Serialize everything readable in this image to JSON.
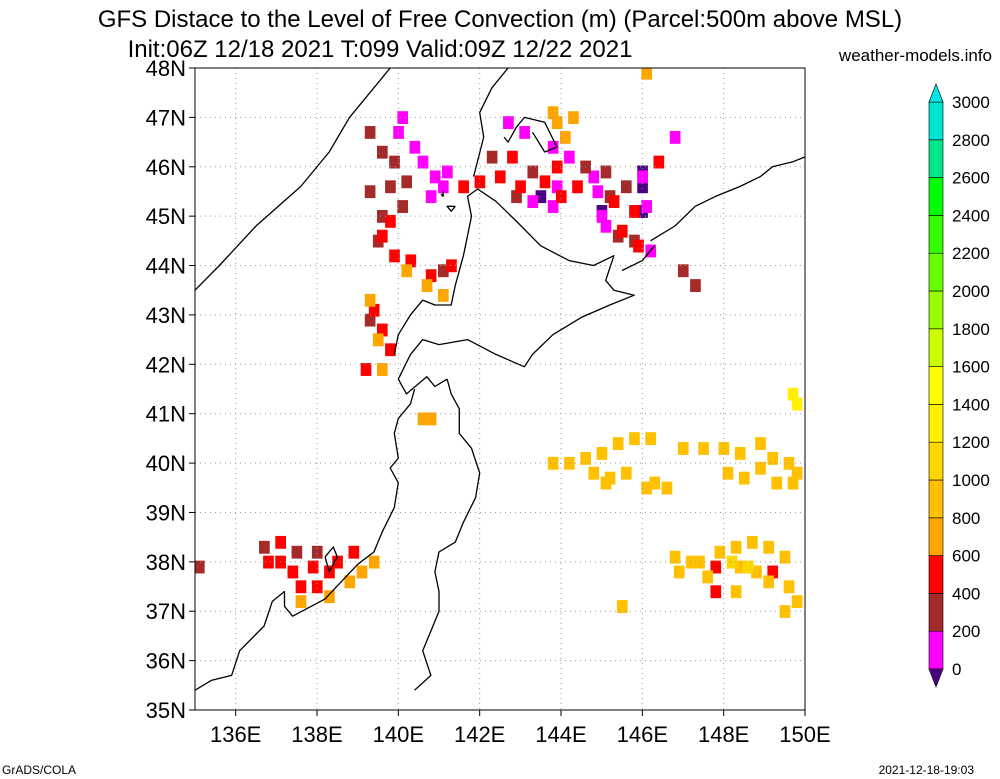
{
  "header": {
    "title": "GFS Distace to the Level of Free Convection (m) (Parcel:500m above MSL)",
    "subtitle": "Init:06Z 12/18 2021 T:099 Valid:09Z 12/22 2021",
    "site": "weather-models.info"
  },
  "footer": {
    "left": "GrADS/COLA",
    "right": "2021-12-18-19:03"
  },
  "map": {
    "lon_range": [
      135,
      150
    ],
    "lat_range": [
      35,
      48
    ],
    "lon_ticks": [
      136,
      138,
      140,
      142,
      144,
      146,
      148,
      150
    ],
    "lat_ticks": [
      35,
      36,
      37,
      38,
      39,
      40,
      41,
      42,
      43,
      44,
      45,
      46,
      47,
      48
    ],
    "lon_tick_labels": [
      "136E",
      "138E",
      "140E",
      "142E",
      "144E",
      "146E",
      "148E",
      "150E"
    ],
    "lat_tick_labels": [
      "35N",
      "36N",
      "37N",
      "38N",
      "39N",
      "40N",
      "41N",
      "42N",
      "43N",
      "44N",
      "45N",
      "46N",
      "47N",
      "48N"
    ],
    "grid": "dotted",
    "coastline_color": "#000000",
    "coastlines": [
      [
        [
          135.0,
          43.5
        ],
        [
          135.6,
          44.0
        ],
        [
          136.5,
          44.8
        ],
        [
          137.6,
          45.6
        ],
        [
          138.3,
          46.3
        ],
        [
          138.8,
          47.0
        ],
        [
          139.4,
          47.6
        ],
        [
          139.8,
          48.0
        ]
      ],
      [
        [
          139.9,
          42.2
        ],
        [
          140.0,
          42.6
        ],
        [
          140.3,
          43.0
        ],
        [
          140.6,
          43.3
        ],
        [
          140.9,
          43.2
        ],
        [
          141.3,
          43.2
        ],
        [
          141.4,
          43.6
        ],
        [
          141.6,
          44.2
        ],
        [
          141.7,
          44.6
        ],
        [
          141.8,
          45.0
        ],
        [
          141.7,
          45.4
        ],
        [
          141.95,
          45.55
        ],
        [
          142.4,
          45.3
        ],
        [
          142.9,
          44.9
        ],
        [
          143.5,
          44.4
        ],
        [
          144.2,
          44.1
        ],
        [
          144.8,
          44.0
        ],
        [
          145.3,
          44.2
        ],
        [
          145.1,
          43.7
        ],
        [
          145.3,
          43.5
        ],
        [
          145.8,
          43.4
        ],
        [
          145.2,
          43.2
        ],
        [
          144.5,
          42.95
        ],
        [
          143.8,
          42.6
        ],
        [
          143.3,
          42.2
        ],
        [
          143.1,
          41.95
        ],
        [
          142.4,
          42.2
        ],
        [
          141.7,
          42.5
        ],
        [
          141.0,
          42.4
        ],
        [
          140.6,
          42.5
        ],
        [
          140.3,
          42.2
        ],
        [
          140.0,
          41.7
        ],
        [
          140.2,
          41.4
        ],
        [
          140.7,
          41.75
        ],
        [
          140.9,
          41.55
        ],
        [
          141.2,
          41.7
        ]
      ],
      [
        [
          141.2,
          41.7
        ],
        [
          141.3,
          41.4
        ],
        [
          141.5,
          41.1
        ],
        [
          141.5,
          40.6
        ],
        [
          141.8,
          40.3
        ],
        [
          142.0,
          39.8
        ],
        [
          141.9,
          39.3
        ],
        [
          141.6,
          38.8
        ],
        [
          141.4,
          38.4
        ],
        [
          141.0,
          38.2
        ],
        [
          140.9,
          37.8
        ],
        [
          141.0,
          37.4
        ],
        [
          141.0,
          37.0
        ],
        [
          140.8,
          36.6
        ],
        [
          140.6,
          36.2
        ],
        [
          140.8,
          35.7
        ],
        [
          140.4,
          35.4
        ]
      ],
      [
        [
          140.4,
          41.5
        ],
        [
          140.3,
          41.2
        ],
        [
          140.0,
          40.9
        ],
        [
          139.9,
          40.6
        ],
        [
          140.0,
          40.1
        ],
        [
          139.8,
          39.9
        ],
        [
          140.0,
          39.6
        ],
        [
          139.9,
          39.1
        ],
        [
          139.6,
          38.6
        ],
        [
          139.4,
          38.2
        ],
        [
          139.0,
          37.95
        ],
        [
          138.6,
          37.6
        ],
        [
          138.2,
          37.25
        ],
        [
          137.4,
          36.9
        ],
        [
          137.2,
          37.1
        ],
        [
          137.2,
          37.4
        ],
        [
          136.9,
          37.2
        ],
        [
          136.7,
          36.7
        ],
        [
          136.1,
          36.2
        ],
        [
          135.9,
          35.7
        ],
        [
          135.4,
          35.6
        ],
        [
          135.0,
          35.4
        ]
      ],
      [
        [
          141.85,
          45.8
        ],
        [
          142.1,
          46.6
        ],
        [
          142.0,
          47.1
        ],
        [
          142.3,
          47.6
        ],
        [
          142.7,
          48.0
        ]
      ],
      [
        [
          143.3,
          46.7
        ],
        [
          143.6,
          46.3
        ],
        [
          143.9,
          46.4
        ],
        [
          143.6,
          46.9
        ],
        [
          143.1,
          47.0
        ],
        [
          142.9,
          46.8
        ],
        [
          142.7,
          46.5
        ],
        [
          142.6,
          46.6
        ]
      ],
      [
        [
          146.2,
          44.5
        ],
        [
          146.8,
          44.8
        ],
        [
          147.3,
          45.2
        ],
        [
          147.8,
          45.4
        ],
        [
          148.4,
          45.6
        ],
        [
          148.9,
          45.8
        ],
        [
          149.2,
          46.0
        ],
        [
          149.7,
          46.1
        ],
        [
          150.0,
          46.2
        ]
      ],
      [
        [
          145.5,
          43.9
        ],
        [
          146.0,
          44.1
        ],
        [
          146.3,
          44.4
        ]
      ],
      [
        [
          138.2,
          38.1
        ],
        [
          138.4,
          38.3
        ],
        [
          138.5,
          38.1
        ],
        [
          138.3,
          37.8
        ],
        [
          138.2,
          38.1
        ]
      ],
      [
        [
          141.4,
          45.2
        ],
        [
          141.3,
          45.1
        ],
        [
          141.2,
          45.2
        ],
        [
          141.4,
          45.2
        ]
      ],
      [
        [
          141.05,
          45.45
        ],
        [
          141.1,
          45.4
        ],
        [
          141.1,
          45.5
        ]
      ]
    ],
    "cell_size_deg": [
      0.25,
      0.25
    ],
    "regions": [
      {
        "level": "0",
        "cells": [
          [
            143.5,
            45.4
          ],
          [
            146.0,
            45.6
          ],
          [
            146.0,
            45.9
          ],
          [
            146.0,
            45.1
          ],
          [
            145.0,
            45.1
          ]
        ]
      },
      {
        "level": "200",
        "cells": [
          [
            140.1,
            47.0
          ],
          [
            140.0,
            46.7
          ],
          [
            140.4,
            46.4
          ],
          [
            140.6,
            46.1
          ],
          [
            140.9,
            45.8
          ],
          [
            141.1,
            45.6
          ],
          [
            141.2,
            45.9
          ],
          [
            140.8,
            45.4
          ],
          [
            144.8,
            45.8
          ],
          [
            144.9,
            45.5
          ],
          [
            143.3,
            45.3
          ],
          [
            143.8,
            45.2
          ],
          [
            146.0,
            45.8
          ],
          [
            146.1,
            45.2
          ],
          [
            145.0,
            45.0
          ],
          [
            145.1,
            44.8
          ],
          [
            146.8,
            46.6
          ],
          [
            142.7,
            46.9
          ],
          [
            143.1,
            46.7
          ],
          [
            143.8,
            46.4
          ],
          [
            144.2,
            46.2
          ],
          [
            143.9,
            45.6
          ],
          [
            146.2,
            44.3
          ]
        ]
      },
      {
        "level": "400",
        "cells": [
          [
            139.3,
            46.7
          ],
          [
            139.6,
            46.3
          ],
          [
            139.9,
            46.1
          ],
          [
            140.2,
            45.7
          ],
          [
            139.3,
            45.5
          ],
          [
            139.6,
            45.0
          ],
          [
            140.1,
            45.2
          ],
          [
            139.8,
            45.6
          ],
          [
            142.3,
            46.2
          ],
          [
            142.9,
            45.4
          ],
          [
            143.3,
            45.9
          ],
          [
            144.6,
            46.0
          ],
          [
            145.1,
            45.9
          ],
          [
            145.2,
            45.4
          ],
          [
            145.6,
            45.6
          ],
          [
            145.4,
            44.6
          ],
          [
            145.8,
            44.5
          ],
          [
            147.0,
            43.9
          ],
          [
            147.3,
            43.6
          ],
          [
            139.5,
            44.5
          ],
          [
            141.1,
            43.9
          ],
          [
            136.7,
            38.3
          ],
          [
            137.5,
            38.2
          ],
          [
            138.0,
            38.2
          ],
          [
            135.1,
            37.9
          ],
          [
            139.3,
            42.9
          ]
        ]
      },
      {
        "level": "600",
        "cells": [
          [
            139.6,
            44.6
          ],
          [
            139.9,
            44.2
          ],
          [
            140.3,
            44.1
          ],
          [
            140.8,
            43.8
          ],
          [
            141.3,
            44.0
          ],
          [
            141.6,
            45.6
          ],
          [
            142.0,
            45.7
          ],
          [
            142.5,
            45.8
          ],
          [
            143.0,
            45.6
          ],
          [
            143.6,
            45.7
          ],
          [
            144.0,
            45.4
          ],
          [
            145.3,
            45.3
          ],
          [
            145.8,
            45.1
          ],
          [
            145.5,
            44.7
          ],
          [
            145.9,
            44.4
          ],
          [
            146.4,
            46.1
          ],
          [
            142.8,
            46.2
          ],
          [
            143.9,
            46.0
          ],
          [
            144.4,
            45.6
          ],
          [
            139.8,
            44.9
          ],
          [
            139.6,
            42.7
          ],
          [
            139.8,
            42.3
          ],
          [
            137.1,
            38.0
          ],
          [
            137.4,
            37.8
          ],
          [
            137.9,
            37.9
          ],
          [
            138.3,
            37.8
          ],
          [
            138.0,
            37.5
          ],
          [
            137.6,
            37.5
          ],
          [
            137.1,
            38.4
          ],
          [
            136.8,
            38.0
          ],
          [
            147.8,
            37.9
          ],
          [
            149.2,
            37.8
          ],
          [
            138.5,
            38.0
          ],
          [
            139.2,
            41.9
          ],
          [
            139.4,
            43.1
          ],
          [
            138.9,
            38.2
          ],
          [
            147.8,
            37.4
          ]
        ]
      },
      {
        "level": "800",
        "cells": [
          [
            140.2,
            43.9
          ],
          [
            140.7,
            43.6
          ],
          [
            141.1,
            43.4
          ],
          [
            143.9,
            46.9
          ],
          [
            144.3,
            47.0
          ],
          [
            143.8,
            47.1
          ],
          [
            138.8,
            37.6
          ],
          [
            138.3,
            37.3
          ],
          [
            139.4,
            38.0
          ],
          [
            139.1,
            37.8
          ],
          [
            137.6,
            37.2
          ],
          [
            144.1,
            46.6
          ],
          [
            146.1,
            47.9
          ],
          [
            139.3,
            43.3
          ],
          [
            139.5,
            42.5
          ],
          [
            139.6,
            41.9
          ],
          [
            140.8,
            40.9
          ],
          [
            140.6,
            40.9
          ]
        ]
      },
      {
        "level": "1000",
        "cells": [
          [
            143.8,
            40.0
          ],
          [
            144.2,
            40.0
          ],
          [
            144.6,
            40.1
          ],
          [
            145.0,
            40.2
          ],
          [
            145.4,
            40.4
          ],
          [
            145.8,
            40.5
          ],
          [
            146.2,
            40.5
          ],
          [
            145.6,
            39.8
          ],
          [
            145.2,
            39.7
          ],
          [
            144.8,
            39.8
          ],
          [
            146.1,
            39.5
          ],
          [
            145.1,
            39.6
          ],
          [
            146.6,
            39.5
          ],
          [
            147.0,
            40.3
          ],
          [
            147.5,
            40.3
          ],
          [
            148.0,
            40.3
          ],
          [
            148.4,
            40.2
          ],
          [
            148.9,
            40.4
          ],
          [
            149.2,
            40.1
          ],
          [
            149.6,
            40.0
          ],
          [
            149.8,
            39.8
          ],
          [
            148.9,
            39.9
          ],
          [
            148.5,
            39.7
          ],
          [
            148.1,
            39.8
          ],
          [
            149.3,
            39.6
          ],
          [
            149.7,
            39.6
          ],
          [
            147.9,
            38.2
          ],
          [
            148.3,
            38.3
          ],
          [
            148.7,
            38.4
          ],
          [
            149.1,
            38.3
          ],
          [
            149.5,
            38.1
          ],
          [
            147.2,
            38.0
          ],
          [
            146.8,
            38.1
          ],
          [
            146.9,
            37.8
          ],
          [
            148.8,
            37.8
          ],
          [
            148.4,
            37.9
          ],
          [
            149.1,
            37.6
          ],
          [
            149.6,
            37.5
          ],
          [
            149.8,
            37.2
          ],
          [
            149.5,
            37.0
          ],
          [
            148.3,
            37.4
          ],
          [
            145.5,
            37.1
          ],
          [
            146.3,
            39.6
          ],
          [
            147.4,
            38.0
          ],
          [
            147.6,
            37.7
          ]
        ]
      },
      {
        "level": "1200",
        "cells": [
          [
            148.6,
            37.9
          ],
          [
            148.2,
            38.0
          ]
        ]
      },
      {
        "level": "1400",
        "cells": [
          [
            149.7,
            41.4
          ],
          [
            149.8,
            41.2
          ]
        ]
      }
    ]
  },
  "colorbar": {
    "levels": [
      "0",
      "200",
      "400",
      "600",
      "800",
      "1000",
      "1200",
      "1400",
      "1600",
      "1800",
      "2000",
      "2200",
      "2400",
      "2600",
      "2800",
      "3000"
    ],
    "colors": [
      "#4b0082",
      "#ff00ff",
      "#a52a2a",
      "#ff0000",
      "#ffa500",
      "#ffc000",
      "#ffd700",
      "#ffef00",
      "#ffff00",
      "#ccff00",
      "#99ff00",
      "#66ff00",
      "#33ff00",
      "#00ff00",
      "#00e68a",
      "#00e5d0"
    ],
    "under_color": "#4b0082",
    "over_color": "#00e5e5",
    "labels": [
      "0",
      "200",
      "400",
      "600",
      "800",
      "1000",
      "1200",
      "1400",
      "1600",
      "1800",
      "2000",
      "2200",
      "2400",
      "2600",
      "2800",
      "3000"
    ]
  }
}
